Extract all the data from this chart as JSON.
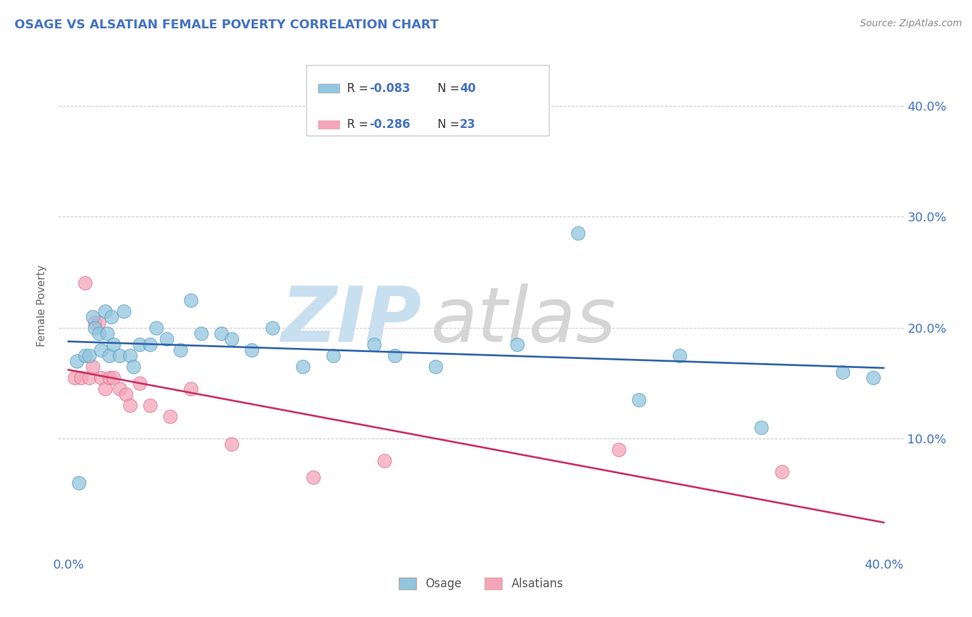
{
  "title": "OSAGE VS ALSATIAN FEMALE POVERTY CORRELATION CHART",
  "source": "Source: ZipAtlas.com",
  "ylabel": "Female Poverty",
  "xlim": [
    0.0,
    0.4
  ],
  "ylim": [
    0.0,
    0.43
  ],
  "y_ticks": [
    0.1,
    0.2,
    0.3,
    0.4
  ],
  "y_tick_labels": [
    "10.0%",
    "20.0%",
    "30.0%",
    "40.0%"
  ],
  "x_ticks": [
    0.0,
    0.4
  ],
  "x_tick_labels": [
    "0.0%",
    "40.0%"
  ],
  "osage_color": "#92c5de",
  "alsatian_color": "#f4a5b8",
  "osage_edge_color": "#5a9fc0",
  "alsatian_edge_color": "#e07090",
  "osage_line_color": "#3366aa",
  "alsatian_line_color": "#cc3366",
  "legend_R_osage": "-0.083",
  "legend_N_osage": "40",
  "legend_R_alsatian": "-0.286",
  "legend_N_alsatian": "23",
  "background_color": "#ffffff",
  "grid_color": "#cccccc",
  "title_color": "#4472c4",
  "axis_label_color": "#4472c4",
  "legend_text_color": "#4472c4",
  "legend_num_color": "#4472c4",
  "osage_x": [
    0.004,
    0.008,
    0.01,
    0.012,
    0.013,
    0.015,
    0.016,
    0.018,
    0.019,
    0.02,
    0.021,
    0.022,
    0.025,
    0.027,
    0.03,
    0.032,
    0.035,
    0.04,
    0.043,
    0.048,
    0.055,
    0.06,
    0.065,
    0.075,
    0.08,
    0.09,
    0.1,
    0.115,
    0.13,
    0.15,
    0.16,
    0.18,
    0.22,
    0.25,
    0.28,
    0.3,
    0.34,
    0.38,
    0.395,
    0.005
  ],
  "osage_y": [
    0.17,
    0.175,
    0.175,
    0.21,
    0.2,
    0.195,
    0.18,
    0.215,
    0.195,
    0.175,
    0.21,
    0.185,
    0.175,
    0.215,
    0.175,
    0.165,
    0.185,
    0.185,
    0.2,
    0.19,
    0.18,
    0.225,
    0.195,
    0.195,
    0.19,
    0.18,
    0.2,
    0.165,
    0.175,
    0.185,
    0.175,
    0.165,
    0.185,
    0.285,
    0.135,
    0.175,
    0.11,
    0.16,
    0.155,
    0.06
  ],
  "alsatian_x": [
    0.003,
    0.006,
    0.008,
    0.01,
    0.012,
    0.013,
    0.015,
    0.016,
    0.018,
    0.02,
    0.022,
    0.025,
    0.028,
    0.03,
    0.035,
    0.04,
    0.05,
    0.06,
    0.08,
    0.12,
    0.155,
    0.27,
    0.35
  ],
  "alsatian_y": [
    0.155,
    0.155,
    0.24,
    0.155,
    0.165,
    0.205,
    0.205,
    0.155,
    0.145,
    0.155,
    0.155,
    0.145,
    0.14,
    0.13,
    0.15,
    0.13,
    0.12,
    0.145,
    0.095,
    0.065,
    0.08,
    0.09,
    0.07
  ]
}
